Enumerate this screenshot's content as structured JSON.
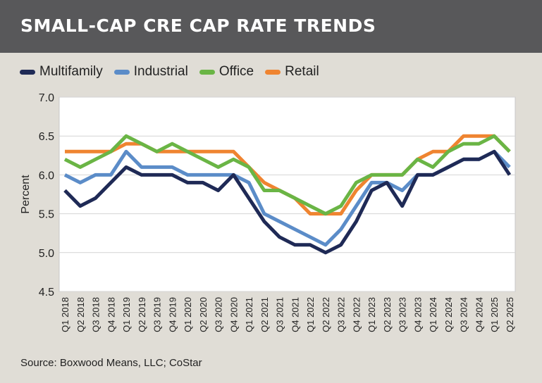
{
  "title": "SMALL-CAP CRE CAP RATE TRENDS",
  "source": "Source: Boxwood Means, LLC; CoStar",
  "colors": {
    "header_bg": "#58585a",
    "background": "#e0ddd6",
    "plot_bg": "#ffffff",
    "gridline": "#d4d4d4"
  },
  "chart_data": {
    "type": "line",
    "title": "SMALL-CAP CRE CAP RATE TRENDS",
    "xlabel": "",
    "ylabel": "Percent",
    "ylim": [
      4.5,
      7.0
    ],
    "yticks": [
      "4.5",
      "5.0",
      "5.5",
      "6.0",
      "6.5",
      "7.0"
    ],
    "grid": true,
    "legend_position": "top-left",
    "categories": [
      "Q1 2018",
      "Q2 2018",
      "Q3 2018",
      "Q4 2018",
      "Q1 2019",
      "Q2 2019",
      "Q3 2019",
      "Q4 2019",
      "Q1 2020",
      "Q2 2020",
      "Q3 2020",
      "Q4 2020",
      "Q1 2021",
      "Q2 2021",
      "Q3 2021",
      "Q4 2021",
      "Q1 2022",
      "Q2 2022",
      "Q3 2022",
      "Q4 2022",
      "Q1 2023",
      "Q2 2023",
      "Q3 2023",
      "Q4 2023",
      "Q1 2024",
      "Q2 2024",
      "Q3 2024",
      "Q4 2024",
      "Q1 2025",
      "Q2 2025"
    ],
    "series": [
      {
        "name": "Multifamily",
        "color": "#1f2a56",
        "values": [
          5.8,
          5.6,
          5.7,
          5.9,
          6.1,
          6.0,
          6.0,
          6.0,
          5.9,
          5.9,
          5.8,
          6.0,
          5.7,
          5.4,
          5.2,
          5.1,
          5.1,
          5.0,
          5.1,
          5.4,
          5.8,
          5.9,
          5.6,
          6.0,
          6.0,
          6.1,
          6.2,
          6.2,
          6.3,
          6.0
        ]
      },
      {
        "name": "Industrial",
        "color": "#5b8cc8",
        "values": [
          6.0,
          5.9,
          6.0,
          6.0,
          6.3,
          6.1,
          6.1,
          6.1,
          6.0,
          6.0,
          6.0,
          6.0,
          5.9,
          5.5,
          5.4,
          5.3,
          5.2,
          5.1,
          5.3,
          5.6,
          5.9,
          5.9,
          5.8,
          6.0,
          6.0,
          6.1,
          6.2,
          6.2,
          6.3,
          6.1
        ]
      },
      {
        "name": "Office",
        "color": "#6ab545",
        "values": [
          6.2,
          6.1,
          6.2,
          6.3,
          6.5,
          6.4,
          6.3,
          6.4,
          6.3,
          6.2,
          6.1,
          6.2,
          6.1,
          5.8,
          5.8,
          5.7,
          5.6,
          5.5,
          5.6,
          5.9,
          6.0,
          6.0,
          6.0,
          6.2,
          6.1,
          6.3,
          6.4,
          6.4,
          6.5,
          6.3
        ]
      },
      {
        "name": "Retail",
        "color": "#ef8430",
        "values": [
          6.3,
          6.3,
          6.3,
          6.3,
          6.4,
          6.4,
          6.3,
          6.3,
          6.3,
          6.3,
          6.3,
          6.3,
          6.1,
          5.9,
          5.8,
          5.7,
          5.5,
          5.5,
          5.5,
          5.8,
          6.0,
          6.0,
          6.0,
          6.2,
          6.3,
          6.3,
          6.5,
          6.5,
          6.5,
          6.3
        ]
      }
    ]
  }
}
